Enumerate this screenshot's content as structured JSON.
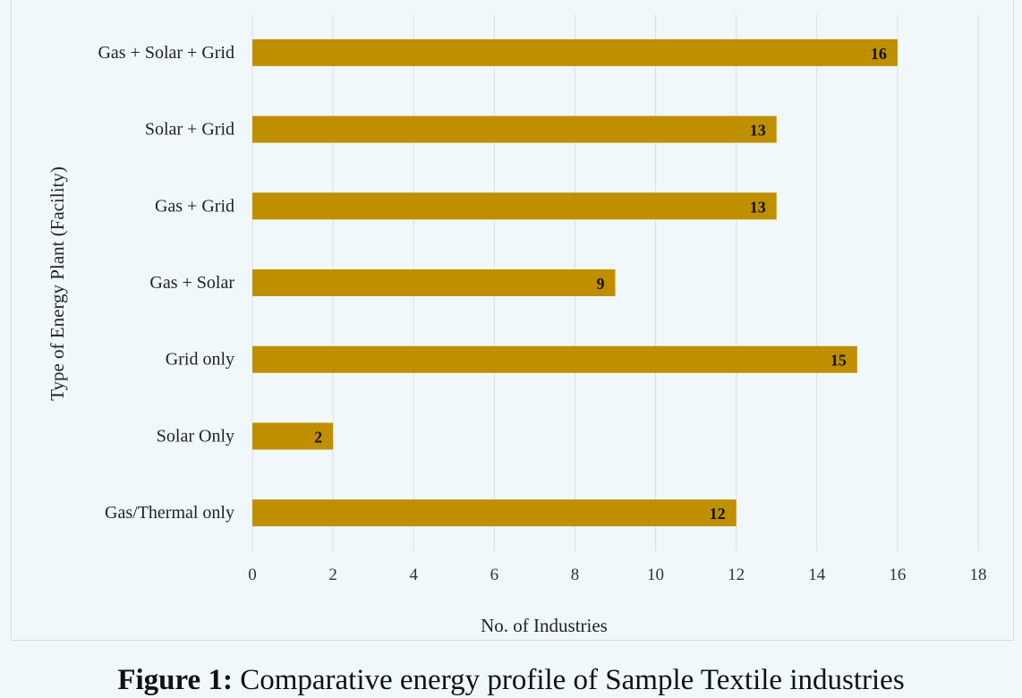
{
  "chart_data": {
    "type": "bar",
    "orientation": "horizontal",
    "categories": [
      "Gas + Solar + Grid",
      "Solar + Grid",
      "Gas + Grid",
      "Gas + Solar",
      "Grid only",
      "Solar Only",
      "Gas/Thermal only"
    ],
    "values": [
      16,
      13,
      13,
      9,
      15,
      2,
      12
    ],
    "xlabel": "No. of Industries",
    "ylabel": "Type of Energy Plant (Facility)",
    "xlim": [
      0,
      18
    ],
    "xticks": [
      0,
      2,
      4,
      6,
      8,
      10,
      12,
      14,
      16,
      18
    ],
    "grid": "vertical",
    "bar_color": "#bf8f00",
    "data_labels": true
  },
  "caption": {
    "label": "Figure 1:",
    "text": "Comparative energy profile of Sample Textile industries"
  }
}
